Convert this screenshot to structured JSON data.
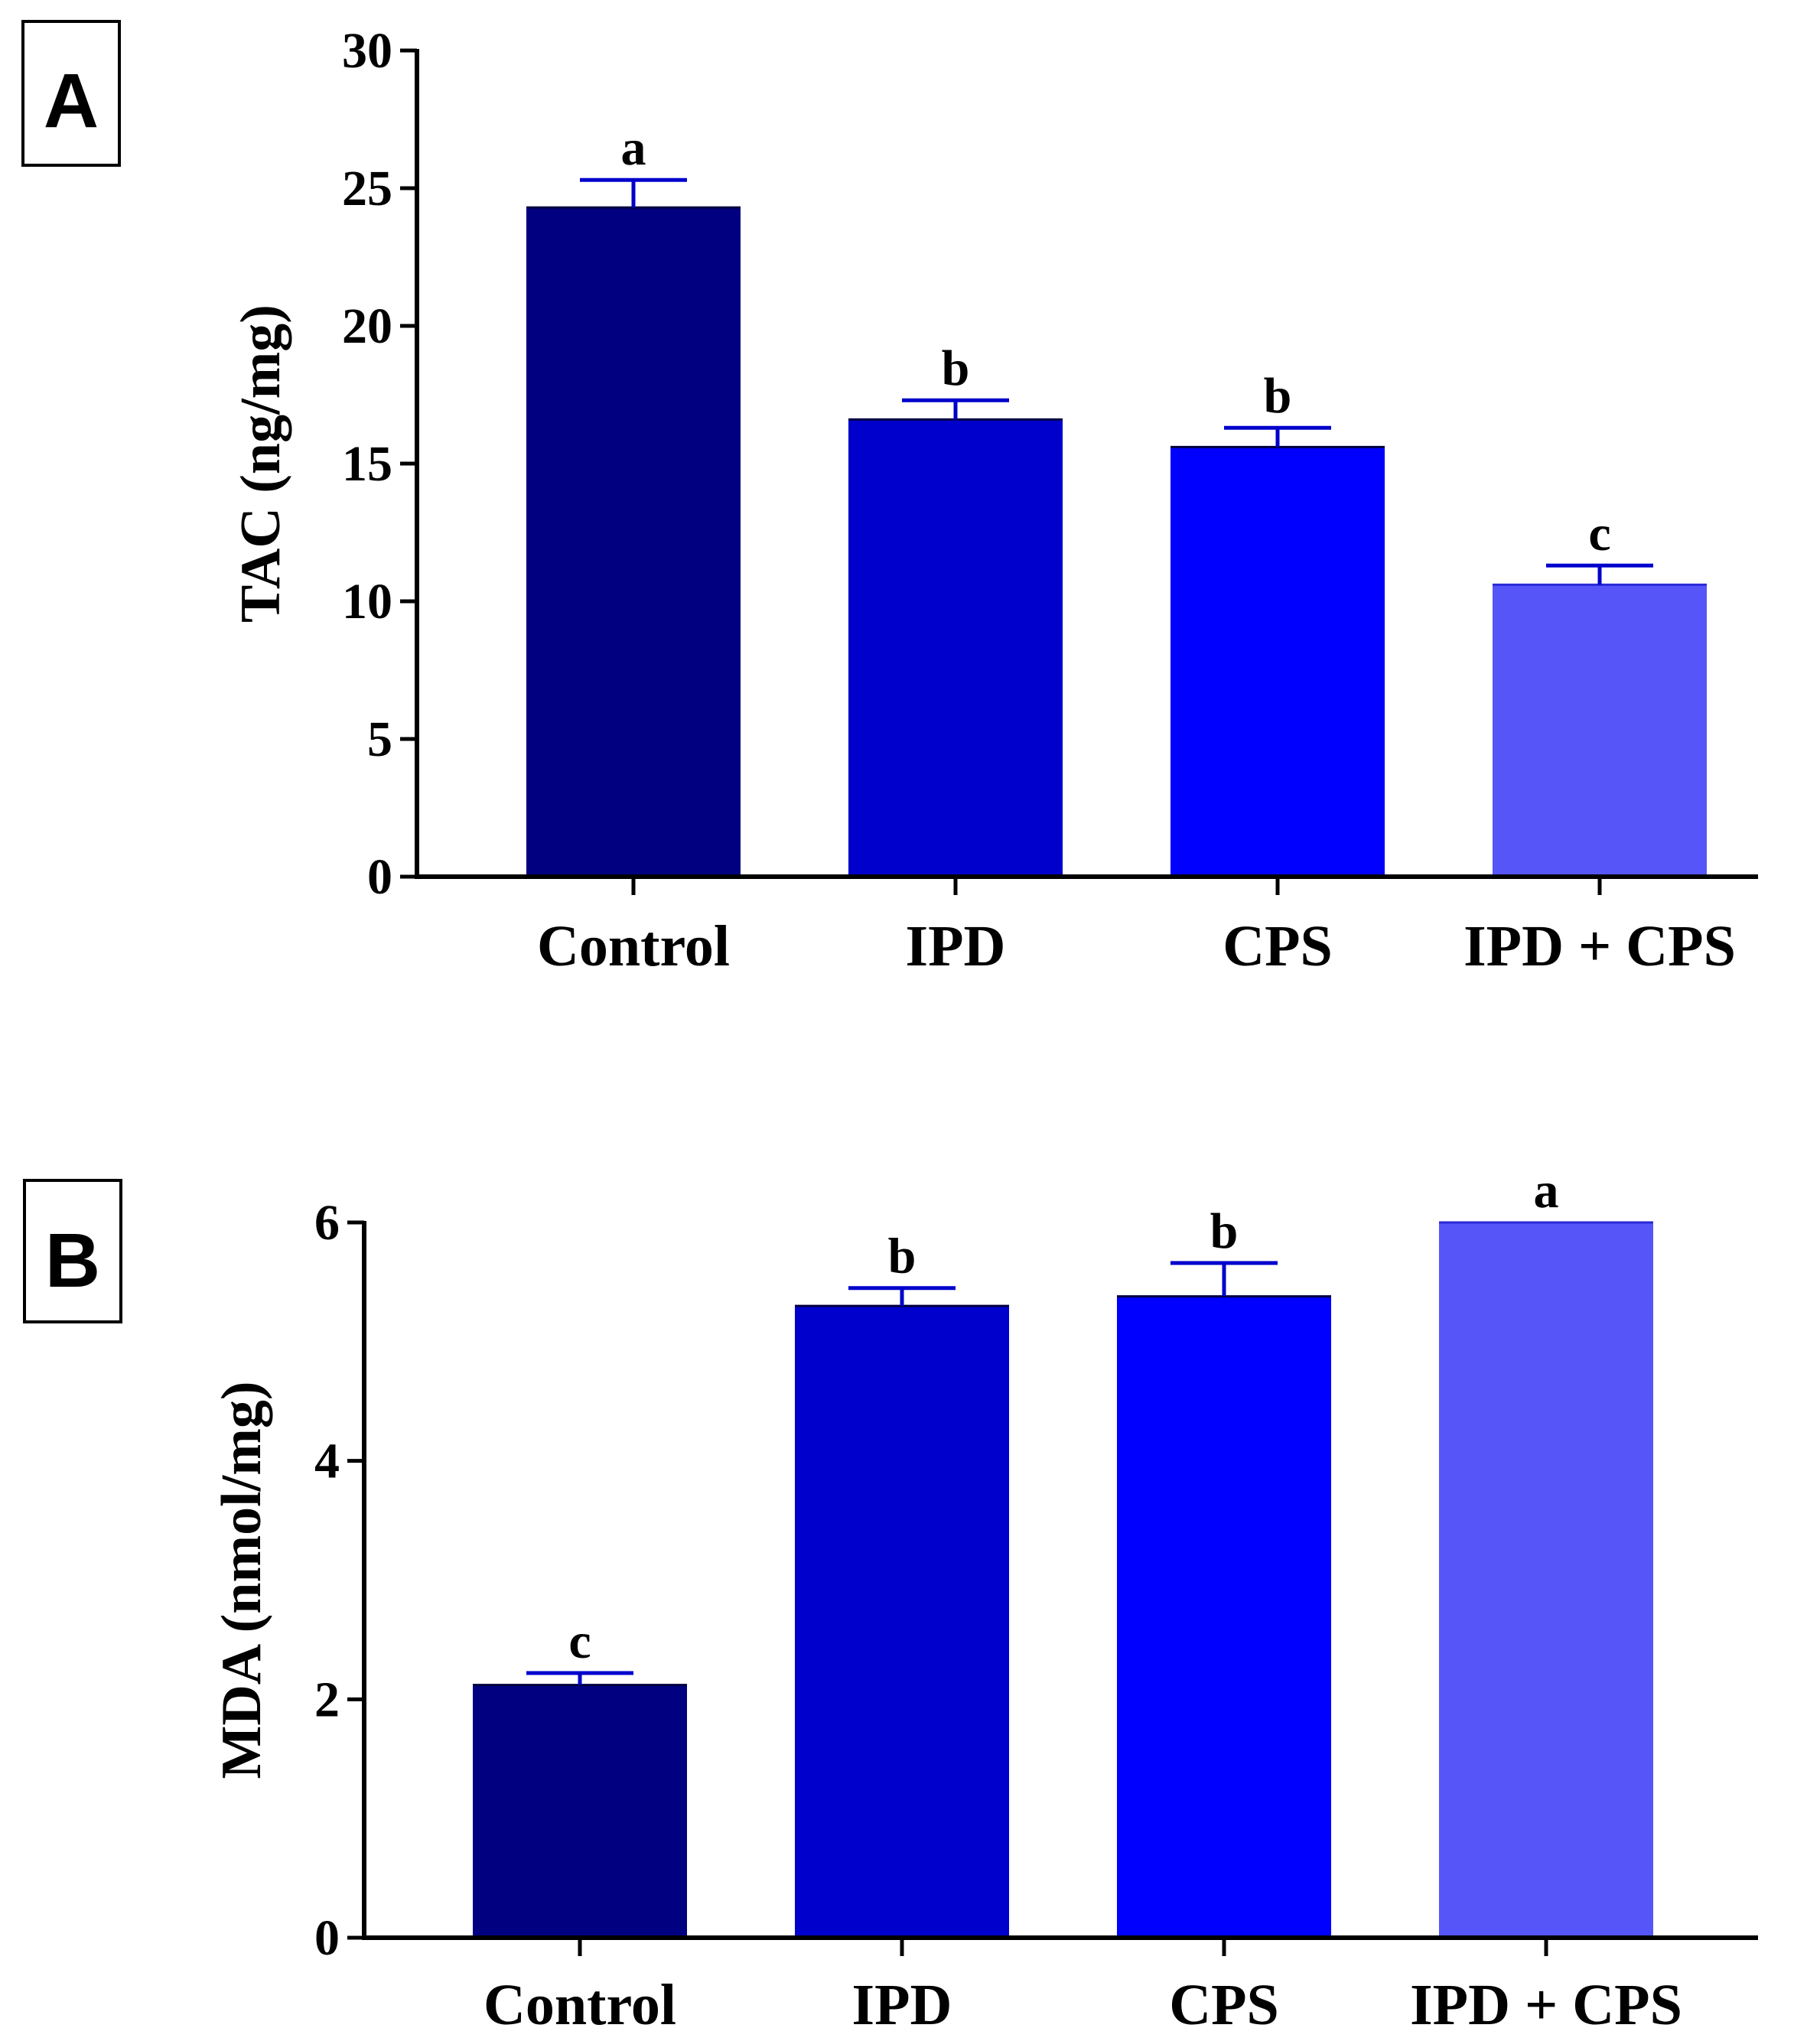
{
  "chart_data": [
    {
      "panel_label": "A",
      "type": "bar",
      "categories": [
        "Control",
        "IPD",
        "CPS",
        "IPD + CPS"
      ],
      "values": [
        24.3,
        16.6,
        15.6,
        10.6
      ],
      "errors": [
        1.0,
        0.7,
        0.7,
        0.7
      ],
      "significance": [
        "a",
        "b",
        "b",
        "c"
      ],
      "colors": [
        "#000080",
        "#0000cc",
        "#0000ff",
        "#5555f8"
      ],
      "error_color": "#0000cc",
      "title": "",
      "xlabel": "",
      "ylabel": "TAC (ng/mg)",
      "ylim": [
        0,
        30
      ],
      "yticks": [
        "0",
        "5",
        "10",
        "15",
        "20",
        "25",
        "30"
      ]
    },
    {
      "panel_label": "B",
      "type": "bar",
      "categories": [
        "Control",
        "IPD",
        "CPS",
        "IPD + CPS"
      ],
      "values": [
        2.12,
        5.3,
        5.38,
        6.0
      ],
      "errors": [
        0.1,
        0.15,
        0.28,
        0.0
      ],
      "significance": [
        "c",
        "b",
        "b",
        "a"
      ],
      "colors": [
        "#000080",
        "#0000cc",
        "#0000ff",
        "#5555f8"
      ],
      "error_color": "#0000cc",
      "title": "",
      "xlabel": "",
      "ylabel": "MDA (nmol/mg)",
      "ylim": [
        0,
        6
      ],
      "yticks": [
        "0",
        "2",
        "4",
        "6"
      ]
    }
  ]
}
